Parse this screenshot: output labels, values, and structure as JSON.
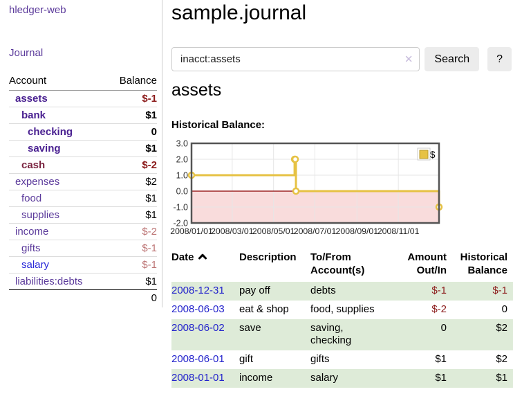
{
  "app": {
    "brand": "hledger-web",
    "nav": {
      "journal": "Journal"
    }
  },
  "sidebar": {
    "headers": {
      "account": "Account",
      "balance": "Balance"
    },
    "accounts": [
      {
        "name": "assets",
        "depth": 1,
        "balance": "$-1",
        "bold": true,
        "name_color": "#4a2191",
        "balance_color": "#8b1a1a"
      },
      {
        "name": "bank",
        "depth": 2,
        "balance": "$1",
        "bold": true,
        "name_color": "#4a2191",
        "balance_color": "#000000"
      },
      {
        "name": "checking",
        "depth": 3,
        "balance": "0",
        "bold": true,
        "name_color": "#4a2191",
        "balance_color": "#000000"
      },
      {
        "name": "saving",
        "depth": 3,
        "balance": "$1",
        "bold": true,
        "name_color": "#4a2191",
        "balance_color": "#000000"
      },
      {
        "name": "cash",
        "depth": 2,
        "balance": "$-2",
        "bold": true,
        "name_color": "#7a2440",
        "balance_color": "#8b1a1a"
      },
      {
        "name": "expenses",
        "depth": 1,
        "balance": "$2",
        "bold": false,
        "name_color": "#5b3a9b",
        "balance_color": "#000000"
      },
      {
        "name": "food",
        "depth": 2,
        "balance": "$1",
        "bold": false,
        "name_color": "#5b3a9b",
        "balance_color": "#000000"
      },
      {
        "name": "supplies",
        "depth": 2,
        "balance": "$1",
        "bold": false,
        "name_color": "#5b3a9b",
        "balance_color": "#000000"
      },
      {
        "name": "income",
        "depth": 1,
        "balance": "$-2",
        "bold": false,
        "name_color": "#5b3a9b",
        "balance_color": "#bc7474"
      },
      {
        "name": "gifts",
        "depth": 2,
        "balance": "$-1",
        "bold": false,
        "name_color": "#5b3a9b",
        "balance_color": "#bc7474"
      },
      {
        "name": "salary",
        "depth": 2,
        "balance": "$-1",
        "bold": false,
        "name_color": "#2626d8",
        "balance_color": "#bc7474"
      },
      {
        "name": "liabilities:debts",
        "depth": 1,
        "balance": "$1",
        "bold": false,
        "name_color": "#5b3a9b",
        "balance_color": "#000000"
      }
    ],
    "total": "0"
  },
  "header": {
    "title": "sample.journal"
  },
  "search": {
    "value": "inacct:assets",
    "clear_icon": "✕",
    "button_label": "Search",
    "help_label": "?"
  },
  "account_page": {
    "heading": "assets",
    "section_label": "Historical Balance:"
  },
  "chart_data": {
    "type": "line",
    "step": true,
    "title": "Historical Balance",
    "series": [
      {
        "name": "$",
        "color": "#e6c244",
        "points": [
          [
            "2008-01-01",
            1
          ],
          [
            "2008-06-01",
            2
          ],
          [
            "2008-06-02",
            2
          ],
          [
            "2008-06-03",
            0
          ],
          [
            "2008-12-31",
            -1
          ]
        ]
      }
    ],
    "xlim": [
      "2008-01-01",
      "2008-12-31"
    ],
    "ylim": [
      -2,
      3
    ],
    "y_ticks": [
      "3.0",
      "2.0",
      "1.0",
      "0.0",
      "-1.0",
      "-2.0"
    ],
    "x_ticks": [
      "2008/01/01",
      "2008/03/01",
      "2008/05/01",
      "2008/07/01",
      "2008/09/01",
      "2008/11/01"
    ],
    "legend": {
      "label": "$",
      "position": "top-right"
    },
    "grid": true,
    "grid_color": "#e6e6e6",
    "negative_region_fill": "#f9dcdc",
    "zero_line_color": "#8b0000",
    "border_color": "#545454"
  },
  "register": {
    "headers": {
      "date": "Date",
      "description": "Description",
      "accounts": "To/From\nAccount(s)",
      "amount": "Amount\nOut/In",
      "balance": "Historical\nBalance"
    },
    "date_color": "#2323cc",
    "stripe_color": "#deebd8",
    "rows": [
      {
        "date": "2008-12-31",
        "description": "pay off",
        "accounts": "debts",
        "amount": "$-1",
        "balance": "$-1",
        "amount_color": "#8b1a1a",
        "balance_color": "#8b1a1a",
        "striped": true
      },
      {
        "date": "2008-06-03",
        "description": "eat & shop",
        "accounts": "food, supplies",
        "amount": "$-2",
        "balance": "0",
        "amount_color": "#8b1a1a",
        "balance_color": "#000000",
        "striped": false
      },
      {
        "date": "2008-06-02",
        "description": "save",
        "accounts": "saving,\nchecking",
        "amount": "0",
        "balance": "$2",
        "amount_color": "#000000",
        "balance_color": "#000000",
        "striped": true
      },
      {
        "date": "2008-06-01",
        "description": "gift",
        "accounts": "gifts",
        "amount": "$1",
        "balance": "$2",
        "amount_color": "#000000",
        "balance_color": "#000000",
        "striped": false
      },
      {
        "date": "2008-01-01",
        "description": "income",
        "accounts": "salary",
        "amount": "$1",
        "balance": "$1",
        "amount_color": "#000000",
        "balance_color": "#000000",
        "striped": true
      }
    ]
  }
}
